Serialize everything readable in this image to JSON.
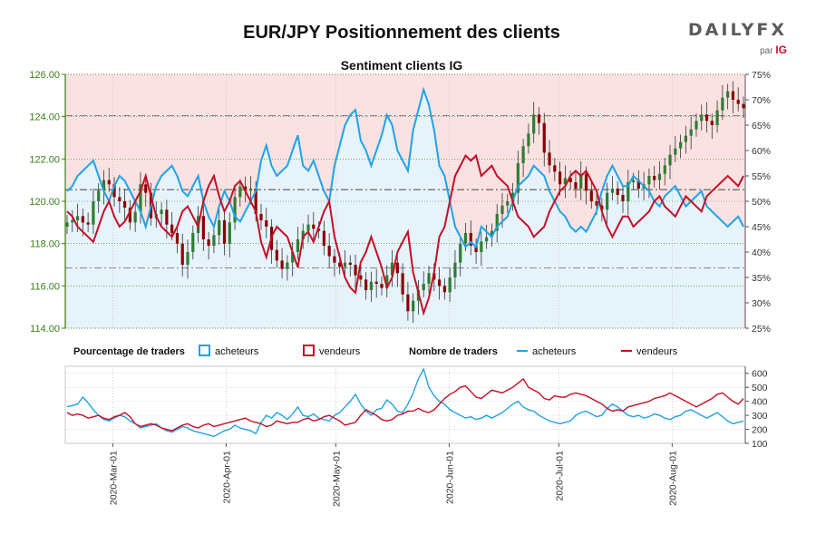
{
  "title": "EUR/JPY Positionnement des clients",
  "subtitle": "Sentiment clients IG",
  "logo": {
    "brand": "DAILYFX",
    "by": "par",
    "ig": "IG"
  },
  "legend": {
    "pct_title": "Pourcentage de traders",
    "count_title": "Nombre de traders",
    "buyers": "acheteurs",
    "sellers": "vendeurs"
  },
  "colors": {
    "buyers_line": "#1fa3e6",
    "buyers_fill": "#e6f3fb",
    "sellers_line": "#c40f27",
    "sellers_fill": "#fbe2e2",
    "candle_up": "#2e7d32",
    "candle_down": "#8b0000",
    "price_axis": "#3a7d1a",
    "grid": "#b5b5b5"
  },
  "chart_data": {
    "type": "line",
    "x_start": "2020-02-17",
    "x_end": "2020-08-21",
    "x_ticks": [
      "2020-Mar-01",
      "2020-Apr-01",
      "2020-May-01",
      "2020-Jun-01",
      "2020-Jul-01",
      "2020-Aug-01"
    ],
    "price_axis": {
      "ylim": [
        114,
        126
      ],
      "ticks": [
        "114.00",
        "116.00",
        "118.00",
        "120.00",
        "122.00",
        "124.00",
        "126.00"
      ]
    },
    "pct_axis": {
      "ylim": [
        25,
        75
      ],
      "ticks": [
        "25%",
        "30%",
        "35%",
        "40%",
        "45%",
        "50%",
        "55%",
        "60%",
        "65%",
        "70%",
        "75%"
      ]
    },
    "count_axis": {
      "ylim": [
        100,
        650
      ],
      "ticks": [
        "100",
        "200",
        "300",
        "400",
        "500",
        "600"
      ]
    },
    "price_levels": [
      116.85,
      120.55,
      124.05
    ],
    "price_close": [
      119.0,
      119.1,
      119.3,
      119.0,
      118.9,
      120.0,
      120.5,
      121.0,
      120.8,
      120.2,
      120.0,
      119.7,
      119.0,
      119.5,
      120.8,
      120.4,
      119.2,
      119.4,
      119.6,
      118.9,
      118.5,
      118.0,
      117.0,
      117.6,
      118.5,
      119.3,
      118.2,
      117.9,
      118.4,
      119.1,
      118.0,
      119.0,
      120.2,
      120.7,
      120.5,
      120.6,
      119.4,
      119.1,
      118.8,
      117.7,
      117.2,
      116.8,
      117.1,
      117.6,
      118.2,
      118.6,
      118.9,
      118.7,
      118.6,
      117.9,
      117.4,
      117.1,
      116.9,
      117.1,
      117.0,
      116.5,
      116.3,
      115.8,
      116.2,
      116.1,
      115.9,
      116.5,
      117.1,
      116.6,
      115.6,
      114.8,
      115.3,
      115.8,
      116.1,
      116.6,
      116.3,
      116.0,
      115.7,
      116.4,
      117.1,
      118.0,
      118.5,
      117.9,
      117.6,
      118.1,
      118.3,
      118.6,
      119.4,
      119.8,
      120.0,
      120.4,
      121.8,
      122.6,
      123.2,
      124.1,
      123.7,
      122.3,
      121.7,
      121.4,
      120.8,
      121.1,
      120.9,
      120.6,
      121.3,
      120.5,
      120.0,
      119.8,
      119.6,
      120.4,
      120.6,
      120.3,
      120.0,
      120.9,
      121.0,
      120.6,
      120.8,
      121.2,
      121.0,
      121.3,
      121.7,
      122.2,
      122.5,
      122.8,
      123.1,
      123.4,
      123.8,
      124.1,
      123.8,
      123.6,
      124.3,
      124.9,
      125.2,
      124.8,
      124.6,
      124.4
    ],
    "series": [
      {
        "name": "acheteurs",
        "pct": [
          52,
          53,
          55,
          56,
          57,
          58,
          55,
          52,
          50,
          53,
          55,
          54,
          52,
          50,
          48,
          45,
          49,
          53,
          55,
          56,
          57,
          55,
          52,
          51,
          53,
          55,
          50,
          47,
          45,
          49,
          52,
          50,
          47,
          46,
          48,
          50,
          52,
          58,
          61,
          57,
          55,
          56,
          57,
          60,
          63,
          57,
          56,
          58,
          55,
          52,
          50,
          57,
          61,
          65,
          67,
          68,
          62,
          60,
          57,
          60,
          63,
          67,
          65,
          60,
          58,
          56,
          64,
          68,
          72,
          69,
          64,
          57,
          55,
          50,
          45,
          43,
          41,
          42,
          41,
          45,
          44,
          43,
          45,
          46,
          47,
          50,
          53,
          54,
          55,
          57,
          56,
          55,
          52,
          50,
          48,
          47,
          45,
          44,
          45,
          44,
          46,
          48,
          52,
          55,
          57,
          55,
          53,
          53,
          55,
          54,
          53,
          52,
          50,
          49,
          51,
          52,
          53,
          51,
          49,
          50,
          51,
          52,
          49,
          48,
          47,
          46,
          45,
          46,
          47,
          45
        ]
      },
      {
        "name": "vendeurs",
        "pct": [
          48,
          47,
          45,
          44,
          43,
          42,
          45,
          48,
          50,
          47,
          45,
          46,
          48,
          50,
          52,
          55,
          51,
          47,
          45,
          44,
          43,
          45,
          48,
          49,
          47,
          45,
          50,
          53,
          55,
          51,
          48,
          50,
          53,
          54,
          52,
          50,
          48,
          42,
          39,
          43,
          45,
          44,
          43,
          40,
          37,
          43,
          44,
          42,
          45,
          48,
          50,
          43,
          39,
          35,
          33,
          32,
          38,
          40,
          43,
          40,
          37,
          33,
          35,
          40,
          42,
          44,
          36,
          32,
          28,
          31,
          36,
          43,
          45,
          50,
          55,
          57,
          59,
          58,
          59,
          55,
          56,
          57,
          55,
          54,
          53,
          50,
          47,
          46,
          45,
          43,
          44,
          45,
          48,
          50,
          52,
          53,
          55,
          56,
          55,
          56,
          54,
          52,
          48,
          45,
          43,
          45,
          47,
          47,
          45,
          46,
          47,
          48,
          50,
          51,
          49,
          48,
          47,
          49,
          51,
          50,
          49,
          48,
          51,
          52,
          53,
          54,
          55,
          54,
          53,
          55
        ]
      }
    ],
    "counts": [
      {
        "name": "acheteurs",
        "values": [
          362,
          370,
          380,
          430,
          390,
          340,
          300,
          270,
          260,
          280,
          300,
          290,
          260,
          240,
          210,
          220,
          230,
          240,
          210,
          190,
          180,
          200,
          220,
          210,
          190,
          180,
          170,
          160,
          150,
          170,
          190,
          200,
          230,
          210,
          200,
          190,
          170,
          250,
          300,
          280,
          320,
          300,
          270,
          310,
          360,
          300,
          290,
          310,
          280,
          270,
          260,
          300,
          320,
          360,
          400,
          450,
          380,
          330,
          300,
          340,
          350,
          410,
          380,
          330,
          320,
          380,
          460,
          560,
          630,
          500,
          440,
          400,
          380,
          340,
          320,
          300,
          280,
          290,
          270,
          280,
          300,
          280,
          300,
          320,
          350,
          380,
          400,
          360,
          340,
          330,
          300,
          280,
          260,
          250,
          240,
          250,
          260,
          300,
          320,
          330,
          310,
          290,
          300,
          350,
          380,
          360,
          330,
          300,
          290,
          300,
          280,
          290,
          310,
          300,
          280,
          270,
          290,
          300,
          330,
          340,
          320,
          300,
          280,
          300,
          320,
          290,
          260,
          240,
          250,
          260
        ]
      },
      {
        "name": "vendeurs",
        "values": [
          320,
          300,
          310,
          300,
          280,
          290,
          300,
          280,
          270,
          290,
          300,
          320,
          290,
          240,
          220,
          230,
          240,
          230,
          210,
          200,
          190,
          210,
          230,
          240,
          220,
          210,
          230,
          240,
          220,
          230,
          240,
          250,
          260,
          270,
          280,
          260,
          250,
          240,
          220,
          230,
          260,
          250,
          240,
          250,
          250,
          270,
          280,
          260,
          270,
          290,
          300,
          280,
          260,
          230,
          240,
          250,
          300,
          340,
          320,
          300,
          270,
          260,
          270,
          300,
          310,
          330,
          330,
          350,
          330,
          320,
          340,
          380,
          420,
          450,
          470,
          500,
          510,
          470,
          430,
          420,
          450,
          480,
          470,
          460,
          480,
          500,
          530,
          560,
          500,
          480,
          460,
          420,
          410,
          440,
          430,
          430,
          450,
          460,
          450,
          440,
          420,
          400,
          380,
          350,
          330,
          340,
          330,
          360,
          370,
          380,
          390,
          400,
          420,
          430,
          440,
          460,
          440,
          420,
          400,
          380,
          360,
          380,
          400,
          420,
          450,
          460,
          430,
          400,
          380,
          420
        ]
      }
    ]
  }
}
